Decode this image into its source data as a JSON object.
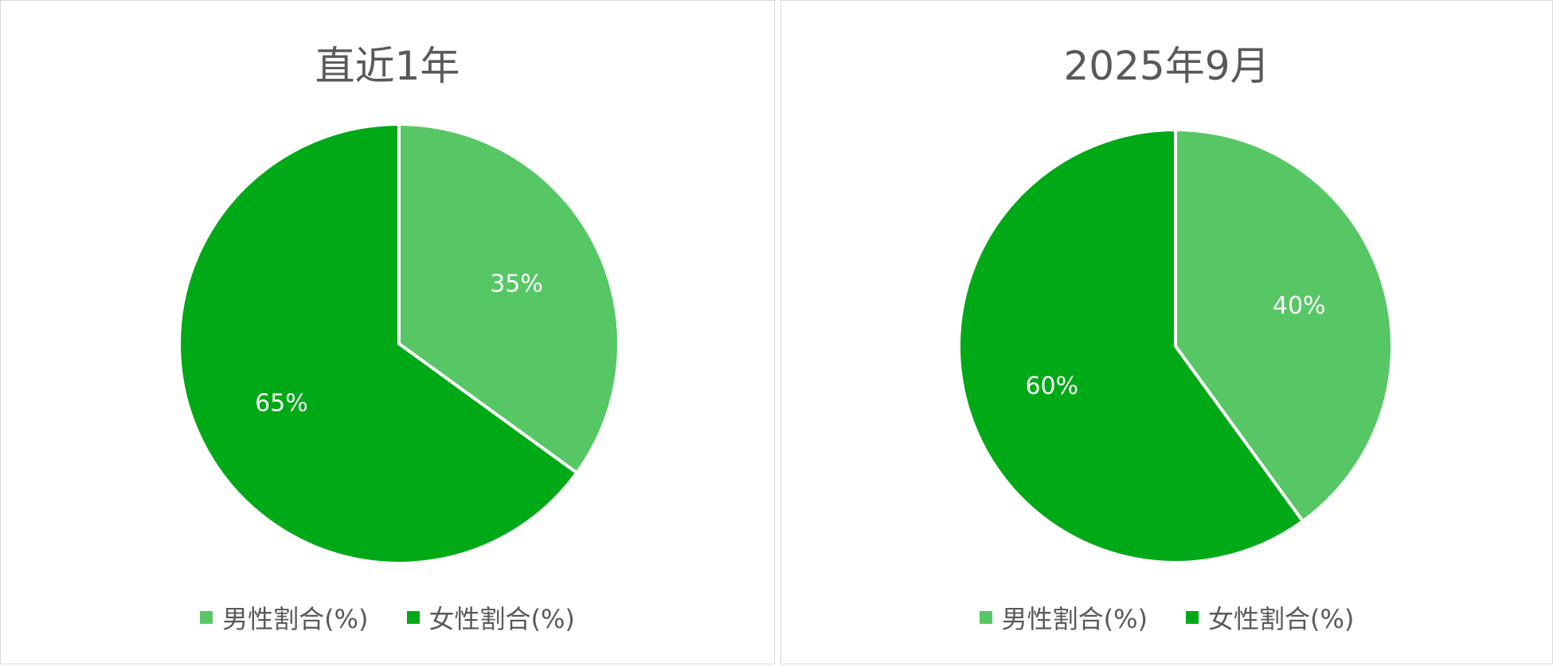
{
  "chart_data": [
    {
      "type": "pie",
      "title": "直近1年",
      "labels": [
        "男性割合(%)",
        "女性割合(%)"
      ],
      "values": [
        35,
        65
      ],
      "value_labels": [
        "35%",
        "65%"
      ],
      "colors": [
        "#57c765",
        "#00a916"
      ],
      "legend_position": "bottom"
    },
    {
      "type": "pie",
      "title": "2025年9月",
      "labels": [
        "男性割合(%)",
        "女性割合(%)"
      ],
      "values": [
        40,
        60
      ],
      "value_labels": [
        "40%",
        "60%"
      ],
      "colors": [
        "#57c765",
        "#00a916"
      ],
      "legend_position": "bottom"
    }
  ]
}
